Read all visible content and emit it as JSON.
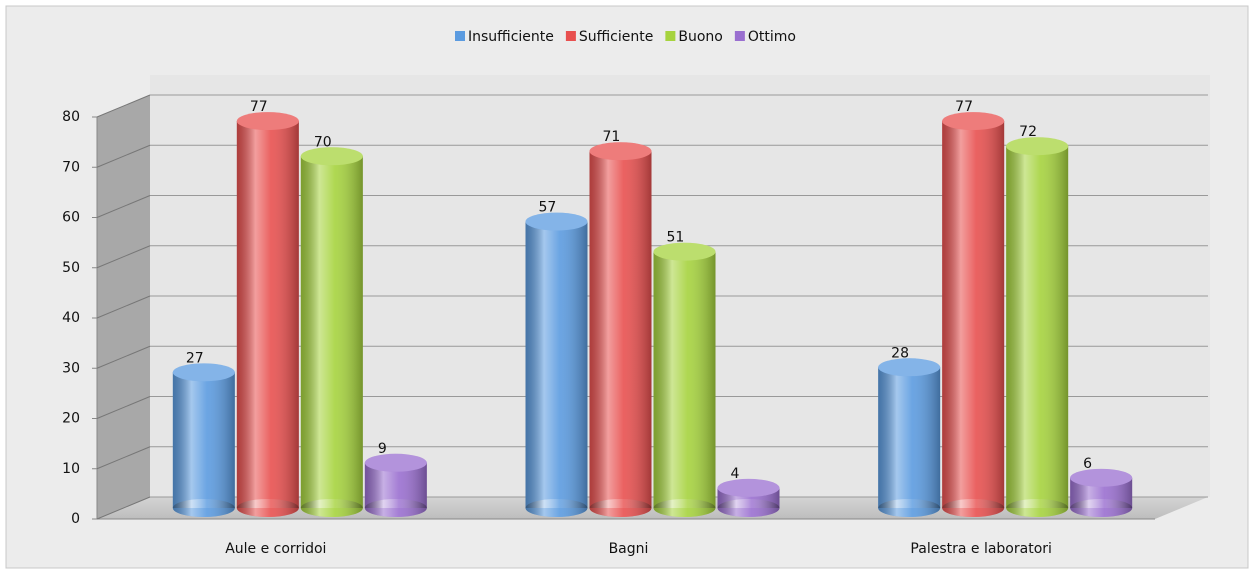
{
  "chart_data": {
    "type": "bar",
    "categories": [
      "Aule e corridoi",
      "Bagni",
      "Palestra e laboratori"
    ],
    "series": [
      {
        "name": "Insufficiente",
        "color": "#5b9be0",
        "values": [
          27,
          57,
          28
        ]
      },
      {
        "name": "Sufficiente",
        "color": "#e8504f",
        "values": [
          77,
          71,
          77
        ]
      },
      {
        "name": "Buono",
        "color": "#a6d33e",
        "values": [
          70,
          51,
          72
        ]
      },
      {
        "name": "Ottimo",
        "color": "#9a6fd0",
        "values": [
          9,
          4,
          6
        ]
      }
    ],
    "ylim": [
      0,
      80
    ],
    "yticks": [
      0,
      10,
      20,
      30,
      40,
      50,
      60,
      70,
      80
    ],
    "grid": true,
    "legend": "top"
  }
}
